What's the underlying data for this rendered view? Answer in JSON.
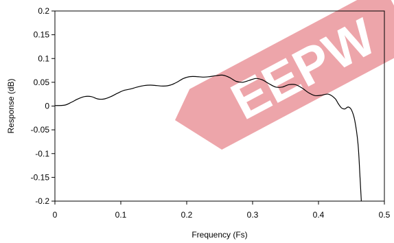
{
  "chart_data": {
    "type": "line",
    "title": "",
    "xlabel": "Frequency (Fs)",
    "ylabel": "Response (dB)",
    "xlim": [
      0,
      0.5
    ],
    "ylim": [
      -0.2,
      0.2
    ],
    "x_ticks": [
      "0",
      "0.1",
      "0.2",
      "0.3",
      "0.4",
      "0.5"
    ],
    "y_ticks": [
      "0.2",
      "0.15",
      "0.1",
      "0.05",
      "0",
      "-0.05",
      "-0.1",
      "-0.15",
      "-0.2"
    ],
    "grid": false,
    "legend": "none",
    "series": [
      {
        "color": "#000000",
        "x": [
          0,
          0.015,
          0.025,
          0.035,
          0.045,
          0.055,
          0.065,
          0.075,
          0.085,
          0.095,
          0.105,
          0.115,
          0.125,
          0.135,
          0.145,
          0.155,
          0.165,
          0.175,
          0.185,
          0.195,
          0.205,
          0.215,
          0.225,
          0.235,
          0.245,
          0.255,
          0.265,
          0.275,
          0.285,
          0.295,
          0.305,
          0.315,
          0.325,
          0.335,
          0.345,
          0.355,
          0.365,
          0.375,
          0.385,
          0.395,
          0.405,
          0.415,
          0.425,
          0.43,
          0.435,
          0.44,
          0.445,
          0.45,
          0.455,
          0.46,
          0.463,
          0.465
        ],
        "y": [
          0.001,
          0.002,
          0.008,
          0.015,
          0.02,
          0.02,
          0.015,
          0.015,
          0.02,
          0.027,
          0.033,
          0.036,
          0.04,
          0.043,
          0.044,
          0.043,
          0.042,
          0.044,
          0.05,
          0.058,
          0.062,
          0.062,
          0.061,
          0.062,
          0.064,
          0.065,
          0.06,
          0.052,
          0.05,
          0.054,
          0.058,
          0.055,
          0.047,
          0.04,
          0.04,
          0.045,
          0.045,
          0.038,
          0.028,
          0.022,
          0.023,
          0.025,
          0.016,
          0.005,
          -0.004,
          -0.006,
          -0.002,
          -0.008,
          -0.03,
          -0.08,
          -0.15,
          -0.2
        ]
      }
    ]
  },
  "watermark": {
    "text": "EEPW",
    "color": "#e8878e"
  }
}
